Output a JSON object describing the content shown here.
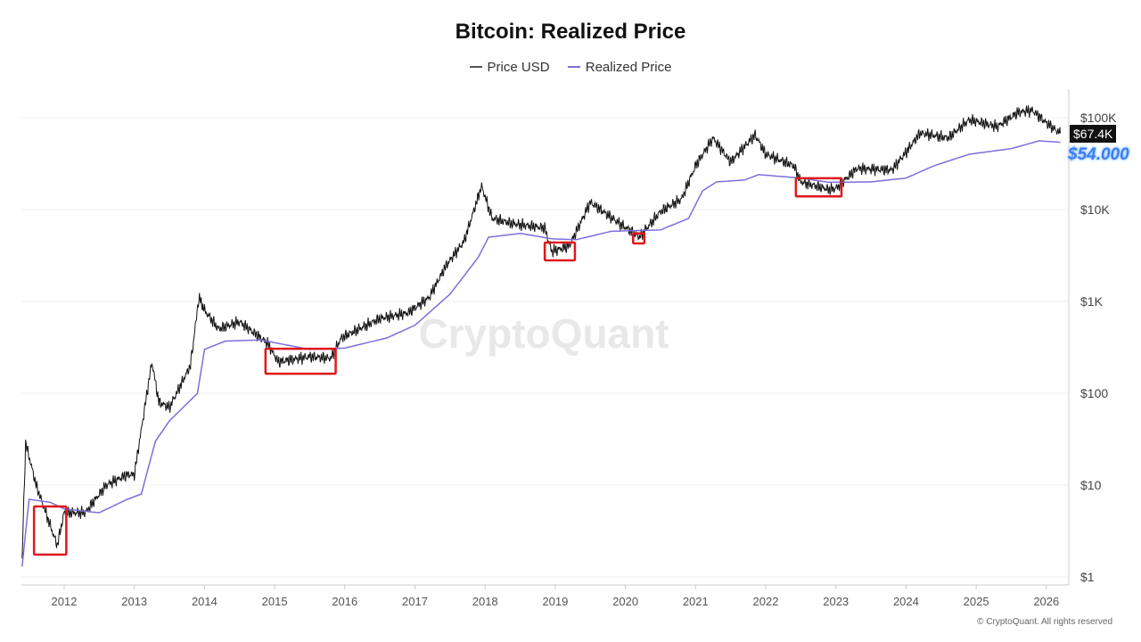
{
  "chart_data": {
    "type": "line",
    "title": "Bitcoin: Realized Price",
    "yscale": "log",
    "ylim": [
      1,
      150000
    ],
    "xlim": [
      2011.4,
      2026.25
    ],
    "x_ticks": [
      "2012",
      "2013",
      "2014",
      "2015",
      "2016",
      "2017",
      "2018",
      "2019",
      "2020",
      "2021",
      "2022",
      "2023",
      "2024",
      "2025",
      "2026"
    ],
    "y_ticks": [
      {
        "v": 1,
        "label": "$1"
      },
      {
        "v": 10,
        "label": "$10"
      },
      {
        "v": 100,
        "label": "$100"
      },
      {
        "v": 1000,
        "label": "$1K"
      },
      {
        "v": 10000,
        "label": "$10K"
      },
      {
        "v": 100000,
        "label": "$100K"
      }
    ],
    "legend_placement": "top-center",
    "series": [
      {
        "name": "Price USD",
        "color": "#111111",
        "points": [
          [
            2011.4,
            1.5
          ],
          [
            2011.45,
            29
          ],
          [
            2011.6,
            10
          ],
          [
            2011.9,
            2.2
          ],
          [
            2012.0,
            5
          ],
          [
            2012.3,
            5
          ],
          [
            2012.6,
            10
          ],
          [
            2012.9,
            13
          ],
          [
            2013.0,
            13
          ],
          [
            2013.25,
            220
          ],
          [
            2013.35,
            80
          ],
          [
            2013.5,
            70
          ],
          [
            2013.8,
            200
          ],
          [
            2013.92,
            1100
          ],
          [
            2014.0,
            800
          ],
          [
            2014.2,
            500
          ],
          [
            2014.5,
            600
          ],
          [
            2014.9,
            350
          ],
          [
            2015.05,
            220
          ],
          [
            2015.5,
            250
          ],
          [
            2015.8,
            240
          ],
          [
            2015.95,
            400
          ],
          [
            2016.5,
            650
          ],
          [
            2016.9,
            750
          ],
          [
            2017.2,
            1100
          ],
          [
            2017.45,
            2500
          ],
          [
            2017.7,
            4500
          ],
          [
            2017.95,
            18000
          ],
          [
            2018.1,
            8000
          ],
          [
            2018.4,
            7000
          ],
          [
            2018.85,
            6300
          ],
          [
            2018.95,
            3500
          ],
          [
            2019.2,
            4000
          ],
          [
            2019.5,
            12000
          ],
          [
            2019.9,
            7200
          ],
          [
            2020.2,
            5000
          ],
          [
            2020.5,
            9500
          ],
          [
            2020.8,
            13000
          ],
          [
            2021.0,
            30000
          ],
          [
            2021.25,
            60000
          ],
          [
            2021.5,
            33000
          ],
          [
            2021.85,
            65000
          ],
          [
            2022.0,
            40000
          ],
          [
            2022.4,
            30000
          ],
          [
            2022.5,
            20000
          ],
          [
            2022.9,
            16500
          ],
          [
            2023.0,
            17000
          ],
          [
            2023.3,
            28000
          ],
          [
            2023.8,
            27000
          ],
          [
            2024.0,
            42000
          ],
          [
            2024.2,
            68000
          ],
          [
            2024.6,
            60000
          ],
          [
            2024.9,
            95000
          ],
          [
            2025.3,
            80000
          ],
          [
            2025.6,
            115000
          ],
          [
            2025.8,
            120000
          ],
          [
            2026.0,
            88000
          ],
          [
            2026.2,
            67400
          ]
        ]
      },
      {
        "name": "Realized Price",
        "color": "#7b6fdc",
        "points": [
          [
            2011.4,
            1.3
          ],
          [
            2011.5,
            7
          ],
          [
            2011.8,
            6.5
          ],
          [
            2012.0,
            5.5
          ],
          [
            2012.5,
            5
          ],
          [
            2012.9,
            7
          ],
          [
            2013.1,
            8
          ],
          [
            2013.3,
            30
          ],
          [
            2013.5,
            50
          ],
          [
            2013.9,
            100
          ],
          [
            2014.0,
            300
          ],
          [
            2014.3,
            370
          ],
          [
            2014.8,
            380
          ],
          [
            2015.5,
            300
          ],
          [
            2016.0,
            310
          ],
          [
            2016.6,
            400
          ],
          [
            2017.0,
            550
          ],
          [
            2017.5,
            1200
          ],
          [
            2017.9,
            3000
          ],
          [
            2018.05,
            5000
          ],
          [
            2018.5,
            5500
          ],
          [
            2018.95,
            4800
          ],
          [
            2019.3,
            4700
          ],
          [
            2019.8,
            5800
          ],
          [
            2020.5,
            6000
          ],
          [
            2020.9,
            8000
          ],
          [
            2021.1,
            16000
          ],
          [
            2021.3,
            20000
          ],
          [
            2021.7,
            21000
          ],
          [
            2021.9,
            24000
          ],
          [
            2022.5,
            22000
          ],
          [
            2022.9,
            19800
          ],
          [
            2023.5,
            20000
          ],
          [
            2024.0,
            22000
          ],
          [
            2024.4,
            30000
          ],
          [
            2024.9,
            40000
          ],
          [
            2025.5,
            46000
          ],
          [
            2025.9,
            56000
          ],
          [
            2026.2,
            54000
          ]
        ]
      }
    ],
    "highlight_boxes": [
      {
        "x": [
          2011.57,
          2012.03
        ],
        "y": [
          1.75,
          5.85
        ]
      },
      {
        "x": [
          2014.87,
          2015.87
        ],
        "y": [
          163,
          305
        ]
      },
      {
        "x": [
          2018.85,
          2019.28
        ],
        "y": [
          2800,
          4370
        ]
      },
      {
        "x": [
          2020.11,
          2020.27
        ],
        "y": [
          4280,
          5500
        ]
      },
      {
        "x": [
          2022.43,
          2023.08
        ],
        "y": [
          13900,
          21900
        ]
      }
    ],
    "box_color": "#e0161b",
    "current_price_label": "$67.4K",
    "current_realized_label": "$54.000",
    "watermark": "CryptoQuant"
  },
  "copyright": "© CryptoQuant. All rights reserved"
}
